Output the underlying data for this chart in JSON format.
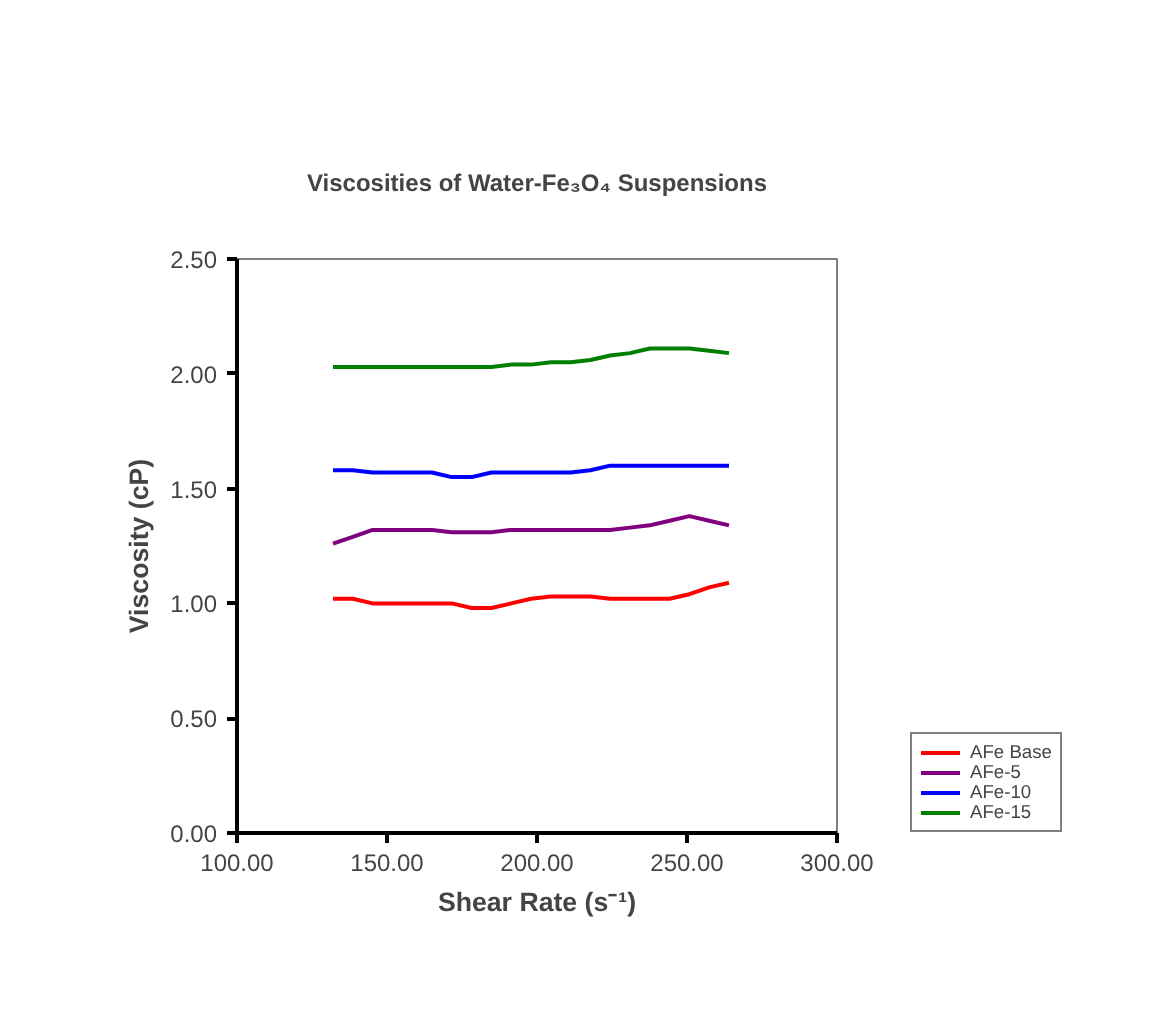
{
  "chart_data": {
    "type": "line",
    "title": "Viscosities of Water-Fe₃O₄ Suspensions",
    "xlabel": "Shear Rate (s⁻¹)",
    "ylabel": "Viscosity (cP)",
    "x": [
      132,
      138.6,
      145.2,
      151.8,
      158.4,
      165,
      171.6,
      178.2,
      184.8,
      191.4,
      198,
      204.6,
      211.2,
      217.8,
      224.4,
      231,
      237.6,
      244.2,
      250.8,
      257.4,
      264
    ],
    "series": [
      {
        "name": "AFe Base",
        "color": "#ff0000",
        "values": [
          1.02,
          1.02,
          1.0,
          1.0,
          1.0,
          1.0,
          1.0,
          0.98,
          0.98,
          1.0,
          1.02,
          1.03,
          1.03,
          1.03,
          1.02,
          1.02,
          1.02,
          1.02,
          1.04,
          1.07,
          1.09
        ]
      },
      {
        "name": "AFe-5",
        "color": "#800080",
        "values": [
          1.26,
          1.29,
          1.32,
          1.32,
          1.32,
          1.32,
          1.31,
          1.31,
          1.31,
          1.32,
          1.32,
          1.32,
          1.32,
          1.32,
          1.32,
          1.33,
          1.34,
          1.36,
          1.38,
          1.36,
          1.34
        ]
      },
      {
        "name": "AFe-10",
        "color": "#0000ff",
        "values": [
          1.58,
          1.58,
          1.57,
          1.57,
          1.57,
          1.57,
          1.55,
          1.55,
          1.57,
          1.57,
          1.57,
          1.57,
          1.57,
          1.58,
          1.6,
          1.6,
          1.6,
          1.6,
          1.6,
          1.6,
          1.6
        ]
      },
      {
        "name": "AFe-15",
        "color": "#008000",
        "values": [
          2.03,
          2.03,
          2.03,
          2.03,
          2.03,
          2.03,
          2.03,
          2.03,
          2.03,
          2.04,
          2.04,
          2.05,
          2.05,
          2.06,
          2.08,
          2.09,
          2.11,
          2.11,
          2.11,
          2.1,
          2.09
        ]
      }
    ],
    "xlim": [
      100,
      300
    ],
    "xticks": [
      {
        "value": 100,
        "label": "100.00"
      },
      {
        "value": 150,
        "label": "150.00"
      },
      {
        "value": 200,
        "label": "200.00"
      },
      {
        "value": 250,
        "label": "250.00"
      },
      {
        "value": 300,
        "label": "300.00"
      }
    ],
    "ylim": [
      0,
      2.5
    ],
    "yticks": [
      {
        "value": 0,
        "label": "0.00"
      },
      {
        "value": 0.5,
        "label": "0.50"
      },
      {
        "value": 1,
        "label": "1.00"
      },
      {
        "value": 1.5,
        "label": "1.50"
      },
      {
        "value": 2,
        "label": "2.00"
      },
      {
        "value": 2.5,
        "label": "2.50"
      }
    ],
    "grid": false,
    "legend": "right",
    "marker": "none",
    "line_style": "solid"
  }
}
